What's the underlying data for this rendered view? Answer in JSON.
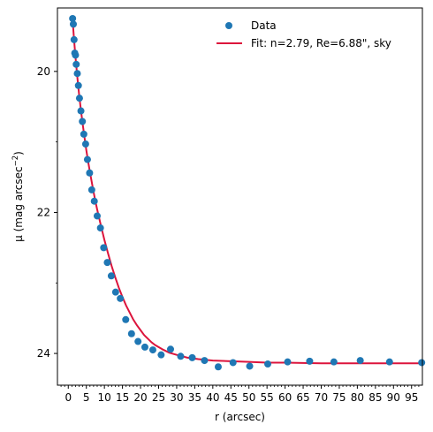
{
  "chart_data": {
    "type": "scatter",
    "xlabel": "r (arcsec)",
    "ylabel_prefix": "μ (mag arcsec",
    "ylabel_exp": "−2",
    "ylabel_suffix": ")",
    "xlim": [
      -3,
      98
    ],
    "ylim": [
      24.45,
      19.1
    ],
    "y_inverted": true,
    "x_ticks": [
      0,
      5,
      10,
      15,
      20,
      25,
      30,
      35,
      40,
      45,
      50,
      55,
      60,
      65,
      70,
      75,
      80,
      85,
      90,
      95
    ],
    "y_ticks_major": [
      20,
      22,
      24
    ],
    "y_ticks_minor": [
      21,
      23
    ],
    "legend_position": "top-right",
    "series": [
      {
        "name": "Data",
        "kind": "scatter",
        "color": "#1f77b4",
        "x": [
          1.2,
          1.4,
          1.6,
          1.8,
          2.0,
          2.2,
          2.5,
          2.8,
          3.1,
          3.5,
          3.9,
          4.3,
          4.8,
          5.3,
          5.9,
          6.5,
          7.2,
          8.0,
          8.9,
          9.8,
          10.8,
          11.9,
          13.1,
          14.4,
          15.9,
          17.5,
          19.3,
          21.2,
          23.4,
          25.7,
          28.3,
          31.1,
          34.3,
          37.7,
          41.5,
          45.6,
          50.2,
          55.2,
          60.7,
          66.8,
          73.5,
          80.8,
          88.9,
          97.8
        ],
        "y": [
          19.25,
          19.33,
          19.55,
          19.74,
          19.77,
          19.9,
          20.03,
          20.2,
          20.38,
          20.56,
          20.71,
          20.89,
          21.03,
          21.25,
          21.44,
          21.68,
          21.84,
          22.05,
          22.22,
          22.5,
          22.71,
          22.9,
          23.13,
          23.22,
          23.52,
          23.72,
          23.83,
          23.91,
          23.95,
          24.02,
          23.94,
          24.04,
          24.06,
          24.1,
          24.19,
          24.13,
          24.18,
          24.15,
          24.12,
          24.11,
          24.12,
          24.1,
          24.12,
          24.13
        ]
      },
      {
        "name": "Fit: n=2.79, Re=6.88\", sky",
        "kind": "line",
        "color": "#dc143c",
        "x": [
          1.2,
          1.6,
          2.0,
          2.5,
          3.0,
          3.5,
          4.0,
          4.5,
          5.0,
          5.5,
          6.0,
          6.5,
          7.0,
          7.5,
          8.0,
          9.0,
          10.0,
          11.0,
          12.0,
          13.0,
          14.0,
          15.0,
          16.0,
          17.0,
          18.0,
          19.0,
          20.0,
          21.0,
          22.0,
          23.0,
          24.0,
          26.0,
          28.0,
          30.0,
          33.0,
          36.0,
          40.0,
          45.0,
          50.0,
          55.0,
          60.0,
          70.0,
          80.0,
          90.0,
          97.8
        ],
        "y": [
          19.27,
          19.55,
          19.8,
          20.08,
          20.33,
          20.55,
          20.75,
          20.94,
          21.12,
          21.28,
          21.43,
          21.57,
          21.71,
          21.84,
          21.96,
          22.18,
          22.39,
          22.58,
          22.76,
          22.92,
          23.07,
          23.2,
          23.32,
          23.42,
          23.52,
          23.6,
          23.67,
          23.74,
          23.79,
          23.84,
          23.88,
          23.94,
          23.99,
          24.02,
          24.06,
          24.08,
          24.1,
          24.11,
          24.12,
          24.13,
          24.13,
          24.14,
          24.14,
          24.14,
          24.14
        ]
      }
    ]
  }
}
